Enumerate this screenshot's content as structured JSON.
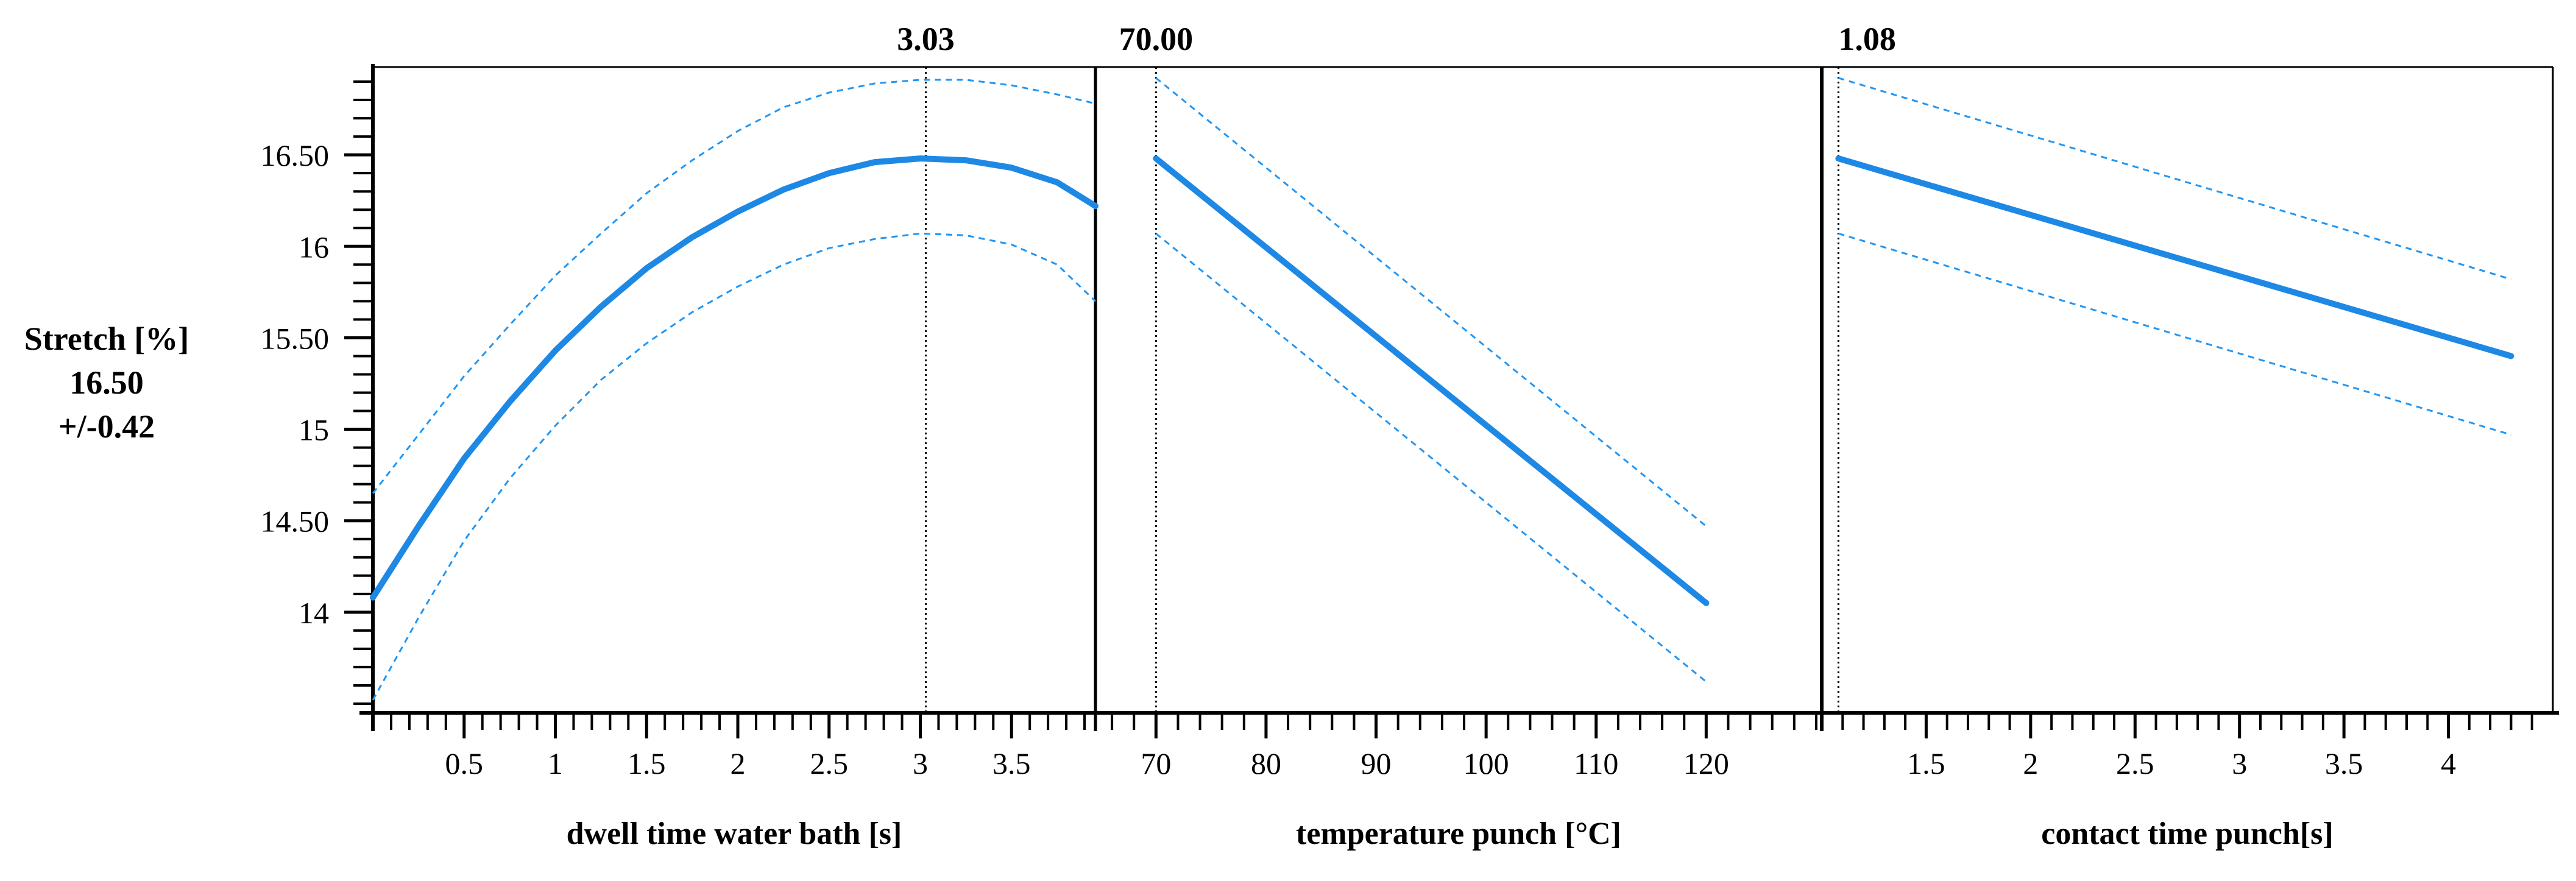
{
  "chart_data": {
    "type": "line",
    "title": "",
    "ylabel": {
      "name": "Stretch [%]",
      "value": "16.50",
      "ci": "+/-0.42"
    },
    "ylim": [
      13.45,
      16.98
    ],
    "y_ticks": [
      14,
      14.5,
      15,
      15.5,
      16,
      16.5
    ],
    "y_tick_labels": [
      "14",
      "14.50",
      "15",
      "15.50",
      "16",
      "16.50"
    ],
    "colors": {
      "line": "#1E88E5",
      "band": "#2196F3",
      "axis": "#000000"
    },
    "panels": [
      {
        "id": "dwell",
        "xlabel": "dwell time water bath [s]",
        "xlim": [
          0.0,
          3.96
        ],
        "x_ticks": [
          0.5,
          1,
          1.5,
          2,
          2.5,
          3,
          3.5
        ],
        "x_tick_labels": [
          "0.5",
          "1",
          "1.5",
          "2",
          "2.5",
          "3",
          "3.5"
        ],
        "minor_step": 0.1,
        "current_x": 3.03,
        "current_label": "3.03",
        "series": [
          {
            "name": "prediction",
            "x": [
              0,
              0.25,
              0.5,
              0.75,
              1,
              1.25,
              1.5,
              1.75,
              2,
              2.25,
              2.5,
              2.75,
              3,
              3.25,
              3.5,
              3.75,
              3.96
            ],
            "y": [
              14.08,
              14.47,
              14.84,
              15.15,
              15.43,
              15.67,
              15.88,
              16.05,
              16.19,
              16.31,
              16.4,
              16.46,
              16.48,
              16.47,
              16.43,
              16.35,
              16.22
            ]
          },
          {
            "name": "upper",
            "x": [
              0,
              0.25,
              0.5,
              0.75,
              1,
              1.25,
              1.5,
              1.75,
              2,
              2.25,
              2.5,
              2.75,
              3,
              3.25,
              3.5,
              3.75,
              3.96
            ],
            "y": [
              14.65,
              14.97,
              15.29,
              15.57,
              15.84,
              16.07,
              16.29,
              16.47,
              16.63,
              16.76,
              16.84,
              16.89,
              16.91,
              16.91,
              16.88,
              16.83,
              16.78
            ]
          },
          {
            "name": "lower",
            "x": [
              0,
              0.25,
              0.5,
              0.75,
              1,
              1.25,
              1.5,
              1.75,
              2,
              2.25,
              2.5,
              2.75,
              3,
              3.25,
              3.5,
              3.75,
              3.96
            ],
            "y": [
              13.52,
              13.97,
              14.39,
              14.73,
              15.02,
              15.27,
              15.47,
              15.64,
              15.78,
              15.9,
              15.99,
              16.04,
              16.07,
              16.06,
              16.01,
              15.9,
              15.7
            ]
          }
        ]
      },
      {
        "id": "temperature",
        "xlabel": "temperature punch [°C]",
        "xlim": [
          64.5,
          130.5
        ],
        "x_ticks": [
          70,
          80,
          90,
          100,
          110,
          120
        ],
        "x_tick_labels": [
          "70",
          "80",
          "90",
          "100",
          "110",
          "120"
        ],
        "minor_step": 2,
        "current_x": 70,
        "current_label": "70.00",
        "series": [
          {
            "name": "prediction",
            "x": [
              70,
              120
            ],
            "y": [
              16.48,
              14.05
            ]
          },
          {
            "name": "upper",
            "x": [
              70,
              120
            ],
            "y": [
              16.92,
              14.47
            ]
          },
          {
            "name": "lower",
            "x": [
              70,
              120
            ],
            "y": [
              16.07,
              13.62
            ]
          }
        ]
      },
      {
        "id": "contact",
        "xlabel": "contact time punch[s]",
        "xlim": [
          1.0,
          4.5
        ],
        "x_ticks": [
          1.5,
          2,
          2.5,
          3,
          3.5,
          4
        ],
        "x_tick_labels": [
          "1.5",
          "2",
          "2.5",
          "3",
          "3.5",
          "4"
        ],
        "minor_step": 0.1,
        "current_x": 1.08,
        "current_label": "1.08",
        "series": [
          {
            "name": "prediction",
            "x": [
              1.08,
              4.3
            ],
            "y": [
              16.48,
              15.4
            ]
          },
          {
            "name": "upper",
            "x": [
              1.08,
              4.3
            ],
            "y": [
              16.92,
              15.82
            ]
          },
          {
            "name": "lower",
            "x": [
              1.08,
              4.3
            ],
            "y": [
              16.07,
              14.97
            ]
          }
        ]
      }
    ]
  }
}
